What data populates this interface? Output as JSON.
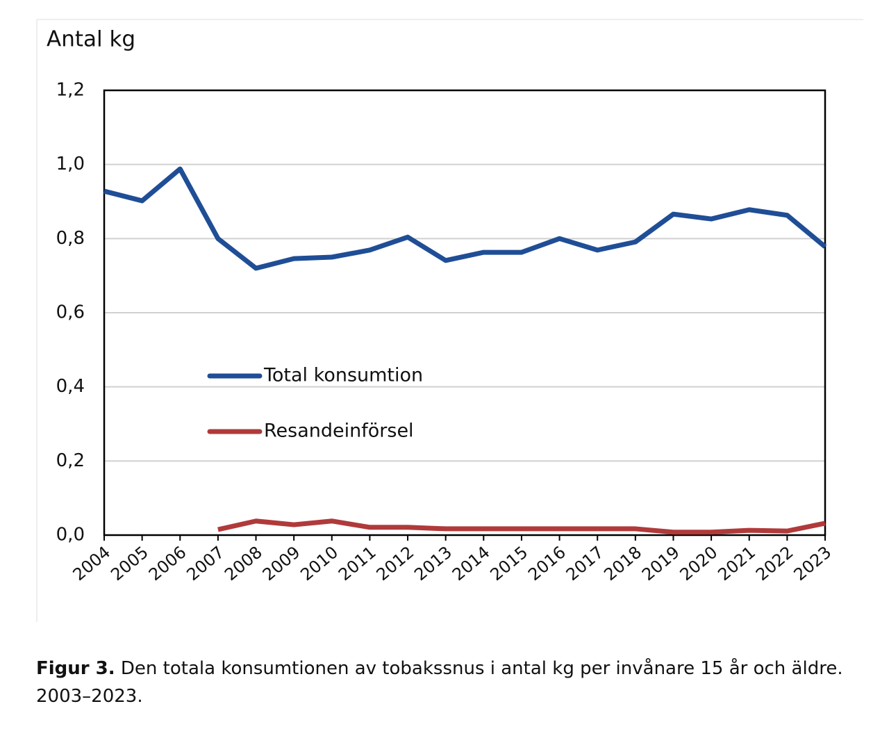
{
  "chart_data": {
    "type": "line",
    "y_label": "Antal kg",
    "categories": [
      "2004",
      "2005",
      "2006",
      "2007",
      "2008",
      "2009",
      "2010",
      "2011",
      "2012",
      "2013",
      "2014",
      "2015",
      "2016",
      "2017",
      "2018",
      "2019",
      "2020",
      "2021",
      "2022",
      "2023"
    ],
    "series": [
      {
        "name": "Total konsumtion",
        "color": "#1f4e96",
        "values": [
          0.928,
          0.902,
          0.988,
          0.8,
          0.72,
          0.746,
          0.75,
          0.769,
          0.804,
          0.741,
          0.763,
          0.763,
          0.8,
          0.769,
          0.791,
          0.866,
          0.853,
          0.878,
          0.863,
          0.778
        ]
      },
      {
        "name": "Resandeinförsel",
        "color": "#b03a3a",
        "values": [
          null,
          null,
          null,
          0.015,
          0.038,
          0.028,
          0.038,
          0.021,
          0.021,
          0.017,
          0.017,
          0.017,
          0.017,
          0.017,
          0.017,
          0.008,
          0.008,
          0.013,
          0.011,
          0.032
        ]
      }
    ],
    "ylim": [
      0,
      1.2
    ],
    "yticks": [
      {
        "value": 0,
        "label": "0,0"
      },
      {
        "value": 0.2,
        "label": "0,2"
      },
      {
        "value": 0.4,
        "label": "0,4"
      },
      {
        "value": 0.6,
        "label": "0,6"
      },
      {
        "value": 0.8,
        "label": "0,8"
      },
      {
        "value": 1.0,
        "label": "1,0"
      },
      {
        "value": 1.2,
        "label": "1,2"
      }
    ],
    "grid": true,
    "caption": {
      "label": "Figur 3.",
      "text": "Den totala konsumtionen av tobakssnus i antal kg per invånare 15 år och äldre. 2003–2023."
    }
  }
}
